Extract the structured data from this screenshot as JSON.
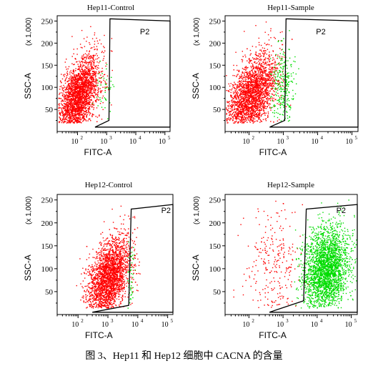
{
  "figure": {
    "caption": "图 3、Hep11 和 Hep12 细胞中 CACNA 的含量"
  },
  "colors": {
    "negative": "#ff0000",
    "positive": "#00dd00",
    "axes": "#000000",
    "gate": "#000000"
  },
  "chart_data": [
    {
      "type": "scatter",
      "title": "Hep11-Control",
      "xlabel": "FITC-A",
      "ylabel": "SSC-A",
      "y_multiplier": "(x 1,000)",
      "x_scale": "log",
      "xlim": [
        20,
        150000
      ],
      "ylim": [
        0,
        262
      ],
      "x_tick_labels": [
        "10",
        "10",
        "10",
        "10"
      ],
      "x_tick_exponents": [
        "2",
        "3",
        "4",
        "5"
      ],
      "y_ticks": [
        50,
        100,
        150,
        200,
        250
      ],
      "gate": {
        "label": "P2",
        "polygon": [
          [
            400,
            10
          ],
          [
            1200,
            25
          ],
          [
            1300,
            255
          ],
          [
            150000,
            250
          ],
          [
            150000,
            10
          ]
        ]
      },
      "series": [
        {
          "color": "negative",
          "clusters": [
            {
              "cx": 2.0,
              "sx": 0.36,
              "cy": 78,
              "sy": 40,
              "slope": 65,
              "n": 2400,
              "ymin": 20,
              "ymax": 258
            }
          ]
        },
        {
          "color": "positive",
          "clusters": [
            {
              "cx": 2.9,
              "sx": 0.14,
              "cy": 95,
              "sy": 35,
              "slope": 0,
              "n": 40,
              "ymin": 20,
              "ymax": 258
            }
          ]
        }
      ]
    },
    {
      "type": "scatter",
      "title": "Hep11-Sample",
      "xlabel": "FITC-A",
      "ylabel": "SSC-A",
      "y_multiplier": "(x 1,000)",
      "x_scale": "log",
      "xlim": [
        20,
        150000
      ],
      "ylim": [
        0,
        262
      ],
      "x_tick_labels": [
        "10",
        "10",
        "10",
        "10"
      ],
      "x_tick_exponents": [
        "2",
        "3",
        "4",
        "5"
      ],
      "y_ticks": [
        50,
        100,
        150,
        200,
        250
      ],
      "gate": {
        "label": "P2",
        "polygon": [
          [
            400,
            10
          ],
          [
            1100,
            25
          ],
          [
            1200,
            255
          ],
          [
            150000,
            250
          ],
          [
            150000,
            10
          ]
        ]
      },
      "series": [
        {
          "color": "negative",
          "clusters": [
            {
              "cx": 2.05,
              "sx": 0.36,
              "cy": 82,
              "sy": 42,
              "slope": 65,
              "n": 2400,
              "ymin": 20,
              "ymax": 258
            }
          ]
        },
        {
          "color": "positive",
          "clusters": [
            {
              "cx": 2.95,
              "sx": 0.16,
              "cy": 105,
              "sy": 45,
              "slope": 10,
              "n": 260,
              "ymin": 20,
              "ymax": 258
            }
          ]
        }
      ]
    },
    {
      "type": "scatter",
      "title": "Hep12-Control",
      "xlabel": "FITC-A",
      "ylabel": "SSC-A",
      "y_multiplier": "(x 1,000)",
      "x_scale": "log",
      "xlim": [
        20,
        150000
      ],
      "ylim": [
        0,
        262
      ],
      "x_tick_labels": [
        "10",
        "10",
        "10",
        "10"
      ],
      "x_tick_exponents": [
        "2",
        "3",
        "4",
        "5"
      ],
      "y_ticks": [
        50,
        100,
        150,
        200,
        250
      ],
      "gate": {
        "label": "P2",
        "polygon": [
          [
            300,
            5
          ],
          [
            5000,
            20
          ],
          [
            6000,
            230
          ],
          [
            150000,
            240
          ],
          [
            150000,
            5
          ]
        ]
      },
      "series": [
        {
          "color": "negative",
          "clusters": [
            {
              "cx": 3.0,
              "sx": 0.35,
              "cy": 80,
              "sy": 40,
              "slope": 60,
              "n": 2500,
              "ymin": 15,
              "ymax": 250
            }
          ]
        },
        {
          "color": "positive",
          "clusters": [
            {
              "cx": 3.75,
              "sx": 0.06,
              "cy": 80,
              "sy": 40,
              "slope": 0,
              "n": 50,
              "ymin": 15,
              "ymax": 250
            }
          ]
        }
      ]
    },
    {
      "type": "scatter",
      "title": "Hep12-Sample",
      "xlabel": "FITC-A",
      "ylabel": "SSC-A",
      "y_multiplier": "(x 1,000)",
      "x_scale": "log",
      "xlim": [
        20,
        150000
      ],
      "ylim": [
        0,
        262
      ],
      "x_tick_labels": [
        "10",
        "10",
        "10",
        "10"
      ],
      "x_tick_exponents": [
        "2",
        "3",
        "4",
        "5"
      ],
      "y_ticks": [
        50,
        100,
        150,
        200,
        250
      ],
      "gate": {
        "label": "P2",
        "polygon": [
          [
            400,
            5
          ],
          [
            4000,
            30
          ],
          [
            4800,
            230
          ],
          [
            150000,
            240
          ],
          [
            150000,
            5
          ]
        ]
      },
      "series": [
        {
          "color": "negative",
          "clusters": [
            {
              "cx": 2.7,
              "sx": 0.42,
              "cy": 110,
              "sy": 60,
              "slope": 0,
              "n": 260,
              "ymin": 15,
              "ymax": 255
            }
          ]
        },
        {
          "color": "positive",
          "clusters": [
            {
              "cx": 4.25,
              "sx": 0.33,
              "cy": 100,
              "sy": 45,
              "slope": 30,
              "n": 2600,
              "ymin": 15,
              "ymax": 255
            }
          ]
        }
      ]
    }
  ]
}
